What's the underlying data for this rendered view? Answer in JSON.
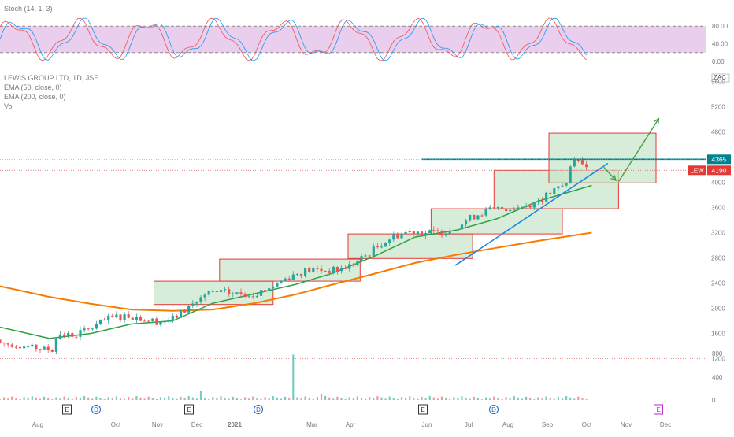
{
  "chart_data": {
    "type": "candlestick",
    "symbol": "LEWIS GROUP LTD, 1D, JSE",
    "ticker": "LEW",
    "currency": "ZAC",
    "last_price": 4190,
    "resistance_level": 4365,
    "indicators": {
      "stoch_label": "Stoch (14, 1, 3)",
      "ema50_label": "EMA (50, close, 0)",
      "ema200_label": "EMA (200, close, 0)",
      "vol_label": "Vol"
    },
    "stoch_axis": [
      "80.00",
      "40.00",
      "0.00"
    ],
    "stoch_bands": [
      80,
      20
    ],
    "price_ticks": [
      5600,
      5200,
      4800,
      4400,
      4000,
      3600,
      3200,
      2800,
      2400,
      2000,
      1600,
      1200
    ],
    "volume_ticks": [
      800,
      400,
      0
    ],
    "x_labels": [
      "Aug",
      "Oct",
      "Nov",
      "Dec",
      "2021",
      "Mar",
      "Apr",
      "Jun",
      "Jul",
      "Aug",
      "Sep",
      "Oct",
      "Nov",
      "Dec"
    ],
    "event_markers": [
      "E",
      "D",
      "E",
      "D",
      "E",
      "D",
      "E"
    ],
    "colors": {
      "up": "#26a69a",
      "down": "#ef5350",
      "ema50": "#2ea043",
      "ema200": "#f57c00",
      "stoch_k": "#2196f3",
      "stoch_d": "#ef5350",
      "stoch_band": "#e1bee7",
      "resistance": "#00838f",
      "trendline": "#1e88e5",
      "arrow": "#43a047",
      "box_fill": "#c8e6c9",
      "box_stroke": "#e53935",
      "last_price_badge": "#e53935"
    },
    "ema50_points": [
      {
        "date": "2020-06-25",
        "value": 1700
      },
      {
        "date": "2020-08-01",
        "value": 1520
      },
      {
        "date": "2020-09-01",
        "value": 1600
      },
      {
        "date": "2020-10-01",
        "value": 1750
      },
      {
        "date": "2020-11-01",
        "value": 1800
      },
      {
        "date": "2020-12-01",
        "value": 2080
      },
      {
        "date": "2021-01-01",
        "value": 2230
      },
      {
        "date": "2021-02-01",
        "value": 2380
      },
      {
        "date": "2021-03-01",
        "value": 2560
      },
      {
        "date": "2021-04-01",
        "value": 2830
      },
      {
        "date": "2021-05-01",
        "value": 3130
      },
      {
        "date": "2021-06-01",
        "value": 3240
      },
      {
        "date": "2021-07-01",
        "value": 3420
      },
      {
        "date": "2021-08-01",
        "value": 3700
      },
      {
        "date": "2021-09-10",
        "value": 3950
      }
    ],
    "ema200_points": [
      {
        "date": "2020-06-25",
        "value": 2350
      },
      {
        "date": "2020-08-01",
        "value": 2180
      },
      {
        "date": "2020-09-01",
        "value": 2070
      },
      {
        "date": "2020-10-01",
        "value": 1980
      },
      {
        "date": "2020-11-01",
        "value": 1960
      },
      {
        "date": "2020-12-01",
        "value": 1980
      },
      {
        "date": "2021-01-01",
        "value": 2080
      },
      {
        "date": "2021-02-01",
        "value": 2220
      },
      {
        "date": "2021-03-01",
        "value": 2380
      },
      {
        "date": "2021-04-01",
        "value": 2550
      },
      {
        "date": "2021-05-01",
        "value": 2720
      },
      {
        "date": "2021-06-01",
        "value": 2850
      },
      {
        "date": "2021-07-01",
        "value": 2960
      },
      {
        "date": "2021-08-01",
        "value": 3070
      },
      {
        "date": "2021-09-10",
        "value": 3200
      }
    ],
    "annotation_boxes": [
      {
        "start": "2020-10-18",
        "end": "2021-01-15",
        "low": 2060,
        "high": 2430
      },
      {
        "start": "2020-12-06",
        "end": "2021-03-21",
        "low": 2430,
        "high": 2780
      },
      {
        "start": "2021-03-12",
        "end": "2021-06-13",
        "low": 2790,
        "high": 3180
      },
      {
        "start": "2021-05-13",
        "end": "2021-08-19",
        "low": 3180,
        "high": 3580
      },
      {
        "start": "2021-06-29",
        "end": "2021-09-30",
        "low": 3580,
        "high": 4190
      },
      {
        "start": "2021-08-09",
        "end": "2021-10-28",
        "low": 3990,
        "high": 4780
      }
    ]
  }
}
